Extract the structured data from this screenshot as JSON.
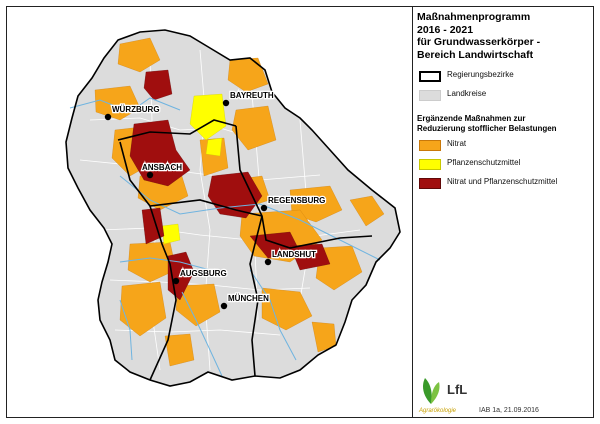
{
  "title": {
    "lines": [
      "Maßnahmenprogramm",
      "2016 - 2021",
      "für Grundwasserkörper -",
      "Bereich Landwirtschaft"
    ]
  },
  "legend": {
    "boundaries": [
      {
        "label": "Regierungsbezirke",
        "style": "outline"
      },
      {
        "label": "Landkreise",
        "style": "fill",
        "color": "#dcdcdc"
      }
    ],
    "measures_title": [
      "Ergänzende Maßnahmen zur",
      "Reduzierung stofflicher Belastungen"
    ],
    "measures": [
      {
        "label": "Nitrat",
        "color": "#f6a51a"
      },
      {
        "label": "Pflanzenschutzmittel",
        "color": "#ffff00"
      },
      {
        "label": "Nitrat und Pflanzenschutzmittel",
        "color": "#a00e0e"
      }
    ]
  },
  "cities": [
    {
      "name": "WÜRZBURG"
    },
    {
      "name": "BAYREUTH"
    },
    {
      "name": "ANSBACH"
    },
    {
      "name": "REGENSBURG"
    },
    {
      "name": "LANDSHUT"
    },
    {
      "name": "AUGSBURG"
    },
    {
      "name": "MÜNCHEN"
    }
  ],
  "logo": {
    "text": "LfL",
    "subtitle": "Agrarökologie"
  },
  "credit": "IAB 1a, 21.09.2016",
  "colors": {
    "land": "#dcdcdc",
    "river": "#6fb4e0",
    "border": "#000000"
  }
}
